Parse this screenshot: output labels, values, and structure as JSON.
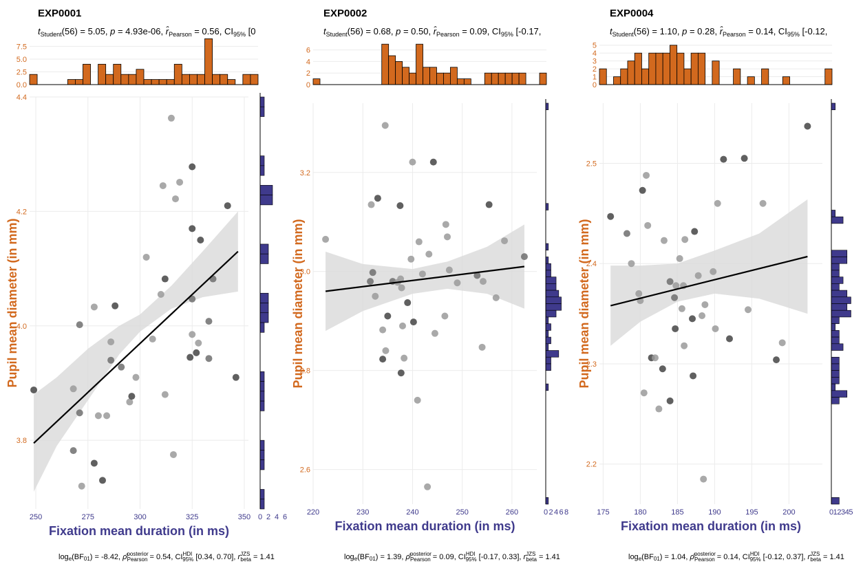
{
  "colors": {
    "accent_orange": "#d2691e",
    "accent_purple": "#3f3a8c",
    "ribbon": "#d9d9d9",
    "fit_line": "#000000",
    "grid": "#ebebeb"
  },
  "chart_data": [
    {
      "type": "scatter",
      "title": "EXP0001",
      "subtitle": {
        "stat": "Student",
        "df": "(56)",
        "t": "5.05",
        "p": "4.93e-06",
        "r": "0.56",
        "ci_open": "[0"
      },
      "caption": {
        "logbf": "-8.42",
        "rho": "0.54",
        "ci": "[0.34, 0.70]",
        "rbeta": "1.41"
      },
      "xlabel": "Fixation mean duration (in ms)",
      "ylabel": "Pupil mean diameter (in mm)",
      "xlim": [
        247,
        352
      ],
      "ylim": [
        3.68,
        4.4
      ],
      "xticks": [
        250,
        275,
        300,
        325,
        350
      ],
      "yticks": [
        3.8,
        4.0,
        4.2,
        4.4
      ],
      "ytick_labels": [
        "3.8",
        "4.0",
        "4.2",
        "4.4"
      ],
      "fit": {
        "x": [
          249,
          347
        ],
        "y": [
          3.795,
          4.13
        ]
      },
      "ribbon": {
        "x": [
          249,
          260,
          275,
          290,
          300,
          315,
          330,
          347
        ],
        "lower": [
          3.71,
          3.79,
          3.87,
          3.95,
          3.99,
          4.03,
          4.05,
          4.06
        ],
        "upper": [
          3.88,
          3.91,
          3.96,
          4.0,
          4.02,
          4.07,
          4.13,
          4.2
        ]
      },
      "points": [
        [
          249,
          3.888,
          "d"
        ],
        [
          268,
          3.89,
          "l"
        ],
        [
          268,
          3.782,
          "m"
        ],
        [
          271,
          3.848,
          "m"
        ],
        [
          271,
          4.002,
          "m"
        ],
        [
          272,
          3.72,
          "l"
        ],
        [
          278,
          3.76,
          "d"
        ],
        [
          278,
          4.033,
          "l"
        ],
        [
          280,
          3.843,
          "l"
        ],
        [
          282,
          3.73,
          "d"
        ],
        [
          284,
          3.843,
          "l"
        ],
        [
          286,
          3.94,
          "m"
        ],
        [
          286,
          3.972,
          "l"
        ],
        [
          288,
          4.035,
          "d"
        ],
        [
          291,
          3.928,
          "m"
        ],
        [
          295,
          3.867,
          "l"
        ],
        [
          296,
          3.877,
          "d"
        ],
        [
          298,
          3.91,
          "l"
        ],
        [
          303,
          4.12,
          "l"
        ],
        [
          306,
          3.977,
          "l"
        ],
        [
          310,
          4.055,
          "l"
        ],
        [
          311,
          4.245,
          "l"
        ],
        [
          312,
          4.082,
          "d"
        ],
        [
          312,
          3.88,
          "l"
        ],
        [
          315,
          4.363,
          "l"
        ],
        [
          316,
          3.775,
          "l"
        ],
        [
          317,
          4.222,
          "l"
        ],
        [
          319,
          4.251,
          "l"
        ],
        [
          324,
          3.945,
          "d"
        ],
        [
          325,
          4.047,
          "m"
        ],
        [
          325,
          3.985,
          "l"
        ],
        [
          325,
          4.278,
          "d"
        ],
        [
          325,
          4.17,
          "d"
        ],
        [
          327,
          3.953,
          "d"
        ],
        [
          328,
          3.97,
          "l"
        ],
        [
          329,
          4.15,
          "d"
        ],
        [
          333,
          4.008,
          "m"
        ],
        [
          333,
          3.943,
          "m"
        ],
        [
          335,
          4.082,
          "m"
        ],
        [
          342,
          4.21,
          "d"
        ],
        [
          346,
          3.91,
          "d"
        ]
      ],
      "top_hist": {
        "ylim": [
          0,
          8.5
        ],
        "yticks": [
          0.0,
          2.5,
          5.0,
          7.5
        ],
        "ytick_labels": [
          "0.0",
          "2.5",
          "5.0",
          "7.5"
        ],
        "counts": [
          2,
          0,
          0,
          0,
          0,
          1,
          1,
          4,
          0,
          4,
          2,
          4,
          2,
          2,
          3,
          1,
          1,
          1,
          1,
          4,
          2,
          2,
          2,
          9,
          2,
          2,
          1,
          0,
          2,
          2
        ]
      },
      "right_hist": {
        "xlim": [
          0,
          7
        ],
        "xticks": [
          0,
          2,
          4,
          6
        ],
        "xtick_labels": [
          "0",
          "2",
          "4",
          "6"
        ],
        "counts": [
          1,
          1,
          0,
          0,
          0,
          0,
          1,
          1,
          0,
          3,
          3,
          0,
          0,
          0,
          0,
          2,
          2,
          0,
          0,
          0,
          2,
          2,
          2,
          1,
          0,
          0,
          0,
          0,
          1,
          1,
          1,
          1,
          0,
          0,
          0,
          1,
          1,
          1,
          0,
          0,
          1,
          1
        ]
      }
    },
    {
      "type": "scatter",
      "title": "EXP0002",
      "subtitle": {
        "stat": "Student",
        "df": "(56)",
        "t": "0.68",
        "p": "0.50",
        "r": "0.09",
        "ci_open": "[-0.17,"
      },
      "caption": {
        "logbf": "1.39",
        "rho": "0.09",
        "ci": "[-0.17, 0.33]",
        "rbeta": "1.41"
      },
      "xlabel": "Fixation mean duration (in ms)",
      "ylabel": "Pupil mean diameter (in mm)",
      "xlim": [
        220,
        265
      ],
      "ylim": [
        2.53,
        3.34
      ],
      "xticks": [
        220,
        230,
        240,
        250,
        260
      ],
      "yticks": [
        2.6,
        2.8,
        3.0,
        3.2
      ],
      "ytick_labels": [
        "2.6",
        "2.8",
        "3.0",
        "3.2"
      ],
      "fit": {
        "x": [
          222.5,
          262.5
        ],
        "y": [
          2.96,
          3.01
        ]
      },
      "ribbon": {
        "x": [
          222.5,
          230,
          240,
          247,
          255,
          262.5
        ],
        "lower": [
          2.88,
          2.92,
          2.955,
          2.965,
          2.955,
          2.925
        ],
        "upper": [
          3.04,
          3.015,
          3.005,
          3.02,
          3.05,
          3.095
        ]
      },
      "points": [
        [
          222.5,
          3.065,
          "l"
        ],
        [
          231.5,
          2.98,
          "m"
        ],
        [
          231.7,
          3.135,
          "l"
        ],
        [
          232,
          2.998,
          "m"
        ],
        [
          232.5,
          2.95,
          "l"
        ],
        [
          233,
          3.148,
          "d"
        ],
        [
          234,
          2.823,
          "d"
        ],
        [
          234,
          2.882,
          "l"
        ],
        [
          234.5,
          3.295,
          "l"
        ],
        [
          234.6,
          2.84,
          "l"
        ],
        [
          235,
          2.91,
          "d"
        ],
        [
          236,
          2.98,
          "m"
        ],
        [
          237,
          2.978,
          "l"
        ],
        [
          237.5,
          3.133,
          "d"
        ],
        [
          237.6,
          2.985,
          "l"
        ],
        [
          237.7,
          2.795,
          "d"
        ],
        [
          237.8,
          2.967,
          "l"
        ],
        [
          238,
          2.89,
          "l"
        ],
        [
          238.3,
          2.825,
          "l"
        ],
        [
          239,
          2.937,
          "d"
        ],
        [
          239.7,
          3.025,
          "l"
        ],
        [
          240,
          3.221,
          "l"
        ],
        [
          240.2,
          2.898,
          "d"
        ],
        [
          241,
          2.74,
          "l"
        ],
        [
          241.3,
          3.06,
          "l"
        ],
        [
          242,
          2.995,
          "l"
        ],
        [
          243,
          2.565,
          "l"
        ],
        [
          243.3,
          3.035,
          "l"
        ],
        [
          244.2,
          3.221,
          "d"
        ],
        [
          244.5,
          2.875,
          "l"
        ],
        [
          246.5,
          2.91,
          "l"
        ],
        [
          246.7,
          3.095,
          "l"
        ],
        [
          247,
          3.07,
          "l"
        ],
        [
          247.4,
          3.003,
          "l"
        ],
        [
          249,
          2.977,
          "l"
        ],
        [
          253,
          2.992,
          "m"
        ],
        [
          254,
          2.847,
          "l"
        ],
        [
          254.2,
          2.98,
          "l"
        ],
        [
          255.4,
          3.135,
          "d"
        ],
        [
          256.8,
          2.947,
          "l"
        ],
        [
          258.5,
          3.062,
          "l"
        ],
        [
          262.5,
          3.03,
          "m"
        ]
      ],
      "top_hist": {
        "ylim": [
          0,
          7.5
        ],
        "yticks": [
          0,
          2,
          4,
          6
        ],
        "ytick_labels": [
          "0",
          "2",
          "4",
          "6"
        ],
        "counts": [
          1,
          0,
          0,
          0,
          0,
          0,
          0,
          0,
          0,
          0,
          7,
          5,
          4,
          3,
          2,
          7,
          3,
          3,
          2,
          2,
          3,
          1,
          1,
          0,
          0,
          2,
          2,
          2,
          2,
          2,
          2,
          0,
          0,
          2
        ]
      },
      "right_hist": {
        "xlim": [
          0,
          8.5
        ],
        "xticks": [
          0,
          2,
          4,
          6,
          8
        ],
        "xtick_labels": [
          "0",
          "2",
          "4",
          "6",
          "8"
        ],
        "counts": [
          1,
          0,
          0,
          0,
          0,
          0,
          0,
          0,
          0,
          0,
          0,
          0,
          0,
          0,
          0,
          1,
          0,
          0,
          0,
          0,
          0,
          1,
          0,
          1,
          2,
          2,
          4,
          4,
          5,
          6,
          6,
          4,
          1,
          2,
          1,
          2,
          1,
          5,
          2,
          2,
          0,
          0,
          1,
          0,
          0,
          0,
          0,
          0,
          0,
          0,
          0,
          0,
          0,
          0,
          0,
          0,
          0,
          0,
          0,
          1
        ]
      }
    },
    {
      "type": "scatter",
      "title": "EXP0004",
      "subtitle": {
        "stat": "Student",
        "df": "(56)",
        "t": "1.10",
        "p": "0.28",
        "r": "0.14",
        "ci_open": "[-0.12,"
      },
      "caption": {
        "logbf": "1.04",
        "rho": "0.14",
        "ci": "[-0.12, 0.37]",
        "rbeta": "1.41"
      },
      "xlabel": "Fixation mean duration (in ms)",
      "ylabel": "Pupil mean diameter (in mm)",
      "xlim": [
        174.5,
        204.5
      ],
      "ylim": [
        2.16,
        2.56
      ],
      "xticks": [
        175,
        180,
        185,
        190,
        195,
        200
      ],
      "yticks": [
        2.2,
        2.3,
        2.4,
        2.5
      ],
      "ytick_labels": [
        "2.2",
        "2.3",
        "2.4",
        "2.5"
      ],
      "fit": {
        "x": [
          176,
          202.5
        ],
        "y": [
          2.358,
          2.407
        ]
      },
      "ribbon": {
        "x": [
          176,
          180,
          185,
          190,
          196,
          202.5
        ],
        "lower": [
          2.318,
          2.342,
          2.362,
          2.37,
          2.365,
          2.35
        ],
        "upper": [
          2.398,
          2.398,
          2.4,
          2.413,
          2.43,
          2.464
        ]
      },
      "points": [
        [
          176,
          2.447,
          "d"
        ],
        [
          178.2,
          2.43,
          "m"
        ],
        [
          178.8,
          2.4,
          "l"
        ],
        [
          179.8,
          2.37,
          "l"
        ],
        [
          180,
          2.363,
          "l"
        ],
        [
          180.3,
          2.473,
          "d"
        ],
        [
          180.5,
          2.271,
          "l"
        ],
        [
          180.8,
          2.488,
          "l"
        ],
        [
          181,
          2.438,
          "l"
        ],
        [
          181.5,
          2.306,
          "d"
        ],
        [
          182,
          2.306,
          "l"
        ],
        [
          182.5,
          2.255,
          "l"
        ],
        [
          183,
          2.295,
          "d"
        ],
        [
          183.2,
          2.423,
          "l"
        ],
        [
          184,
          2.382,
          "m"
        ],
        [
          184,
          2.263,
          "d"
        ],
        [
          184.6,
          2.366,
          "m"
        ],
        [
          184.7,
          2.335,
          "d"
        ],
        [
          184.8,
          2.378,
          "l"
        ],
        [
          185.3,
          2.405,
          "l"
        ],
        [
          185.6,
          2.355,
          "l"
        ],
        [
          185.8,
          2.378,
          "l"
        ],
        [
          185.9,
          2.318,
          "l"
        ],
        [
          186,
          2.424,
          "l"
        ],
        [
          187,
          2.345,
          "d"
        ],
        [
          187.1,
          2.288,
          "d"
        ],
        [
          187.3,
          2.432,
          "d"
        ],
        [
          187.8,
          2.388,
          "l"
        ],
        [
          188.3,
          2.348,
          "l"
        ],
        [
          188.5,
          2.185,
          "l"
        ],
        [
          188.7,
          2.359,
          "l"
        ],
        [
          189.8,
          2.392,
          "l"
        ],
        [
          190.1,
          2.335,
          "l"
        ],
        [
          190.4,
          2.46,
          "l"
        ],
        [
          191.2,
          2.504,
          "d"
        ],
        [
          192,
          2.325,
          "d"
        ],
        [
          194,
          2.505,
          "d"
        ],
        [
          194.5,
          2.354,
          "l"
        ],
        [
          196.5,
          2.46,
          "l"
        ],
        [
          198.3,
          2.304,
          "d"
        ],
        [
          199.1,
          2.321,
          "l"
        ],
        [
          202.5,
          2.537,
          "d"
        ]
      ],
      "top_hist": {
        "ylim": [
          0,
          5.5
        ],
        "yticks": [
          0,
          1,
          2,
          3,
          4,
          5
        ],
        "ytick_labels": [
          "0",
          "1",
          "2",
          "3",
          "4",
          "5"
        ],
        "counts": [
          2,
          0,
          1,
          2,
          3,
          4,
          2,
          4,
          4,
          4,
          5,
          4,
          2,
          4,
          4,
          0,
          3,
          0,
          0,
          2,
          0,
          1,
          0,
          2,
          0,
          0,
          1,
          0,
          0,
          0,
          0,
          0,
          2
        ]
      },
      "right_hist": {
        "xlim": [
          0,
          6.5
        ],
        "xticks": [
          0,
          1,
          2,
          3,
          4,
          5
        ],
        "xtick_labels": [
          "0",
          "1",
          "2",
          "3",
          "4",
          "5"
        ],
        "counts": [
          1,
          0,
          0,
          0,
          0,
          0,
          0,
          0,
          0,
          0,
          0,
          0,
          0,
          0,
          0,
          0,
          1,
          3,
          0,
          0,
          0,
          0,
          4,
          4,
          2,
          2,
          3,
          2,
          4,
          5,
          4,
          5,
          2,
          1,
          2,
          2,
          3,
          0,
          2,
          2,
          2,
          2,
          1,
          4,
          2,
          0,
          0,
          0,
          0,
          0,
          0,
          0,
          0,
          0,
          0,
          0,
          0,
          0,
          0,
          2
        ]
      }
    }
  ]
}
